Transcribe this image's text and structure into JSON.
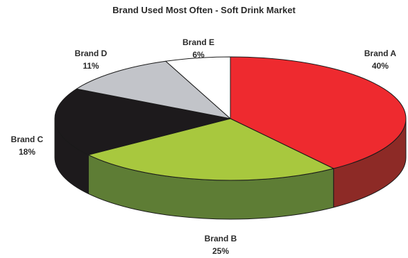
{
  "chart_data": {
    "type": "pie",
    "title": "Brand Used Most Often - Soft Drink Market",
    "slices": [
      {
        "name": "Brand A",
        "value": 40,
        "label": "40%",
        "color": "#ee2a2f",
        "side_color": "#8d2a26"
      },
      {
        "name": "Brand B",
        "value": 25,
        "label": "25%",
        "color": "#a8c83e",
        "side_color": "#5e7d35"
      },
      {
        "name": "Brand C",
        "value": 18,
        "label": "18%",
        "color": "#1d1a1c",
        "side_color": "#1d1a1c"
      },
      {
        "name": "Brand D",
        "value": 11,
        "label": "11%",
        "color": "#c2c4c9",
        "side_color": "#8f9196"
      },
      {
        "name": "Brand E",
        "value": 6,
        "label": "6%",
        "color": "#ffffff",
        "side_color": "#e6e6e6"
      }
    ],
    "style": "3d-pie",
    "legend": "none"
  }
}
